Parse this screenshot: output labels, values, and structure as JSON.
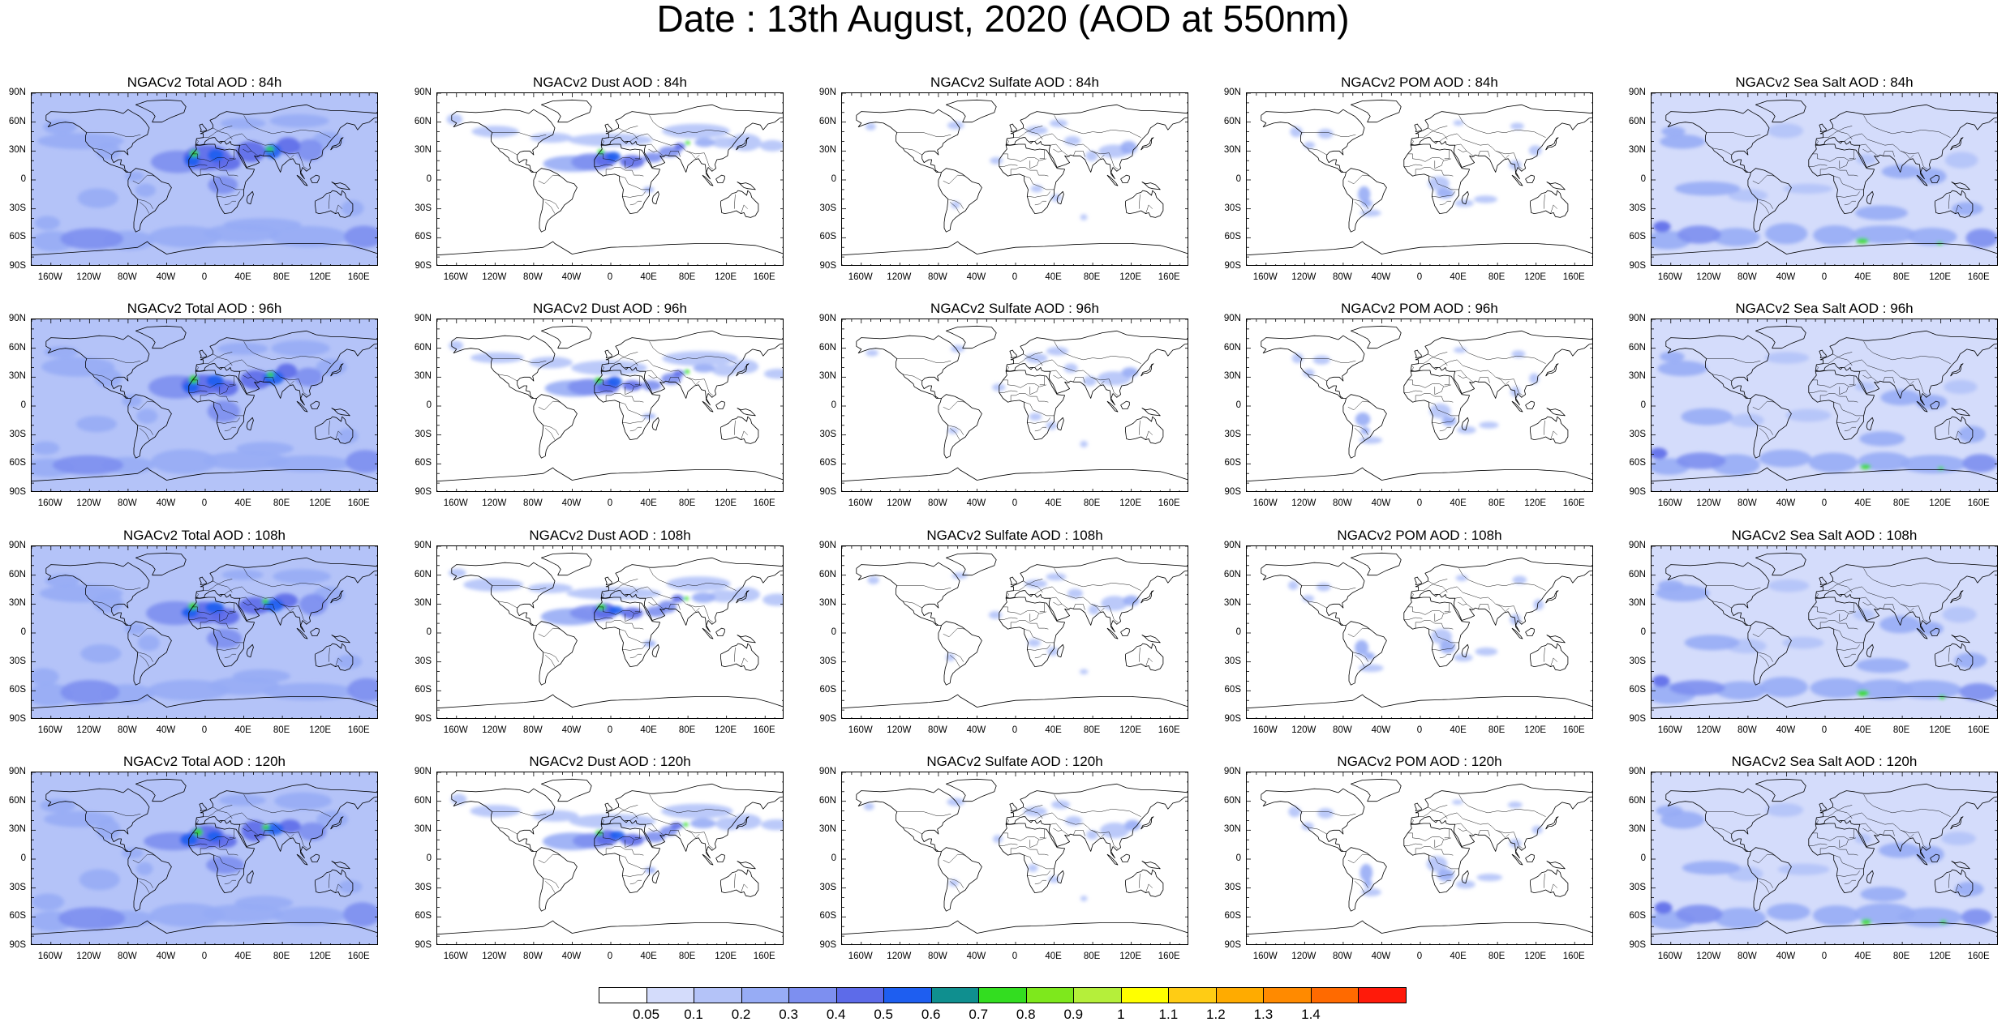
{
  "title": "Date : 13th August, 2020 (AOD at 550nm)",
  "panel_titles": [
    [
      "NGACv2 Total AOD : 84h",
      "NGACv2 Dust AOD : 84h",
      "NGACv2 Sulfate AOD : 84h",
      "NGACv2 POM AOD : 84h",
      "NGACv2 Sea Salt AOD : 84h"
    ],
    [
      "NGACv2 Total AOD : 96h",
      "NGACv2 Dust AOD : 96h",
      "NGACv2 Sulfate AOD : 96h",
      "NGACv2 POM AOD : 96h",
      "NGACv2 Sea Salt AOD : 96h"
    ],
    [
      "NGACv2 Total AOD : 108h",
      "NGACv2 Dust AOD : 108h",
      "NGACv2 Sulfate AOD : 108h",
      "NGACv2 POM AOD : 108h",
      "NGACv2 Sea Salt AOD : 108h"
    ],
    [
      "NGACv2 Total AOD : 120h",
      "NGACv2 Dust AOD : 120h",
      "NGACv2 Sulfate AOD : 120h",
      "NGACv2 POM AOD : 120h",
      "NGACv2 Sea Salt  AOD : 120h"
    ]
  ],
  "species": [
    "total",
    "dust",
    "sulfate",
    "pom",
    "seasalt"
  ],
  "lat_ticks": [
    "90N",
    "60N",
    "30N",
    "0",
    "30S",
    "60S",
    "90S"
  ],
  "lon_ticks": [
    "160W",
    "120W",
    "80W",
    "40W",
    "0",
    "40E",
    "80E",
    "120E",
    "160E"
  ],
  "colorbar": {
    "colors": [
      "#ffffff",
      "#d4dcfb",
      "#b4c3f8",
      "#97acf5",
      "#7d8ff0",
      "#5d6be9",
      "#1e5ef0",
      "#0f8f8f",
      "#33dd20",
      "#7ee81c",
      "#b5ef3a",
      "#ffff00",
      "#ffcc14",
      "#ffab00",
      "#ff8a00",
      "#ff6a00",
      "#ff1a0a"
    ],
    "labels": [
      "0.05",
      "0.1",
      "0.2",
      "0.3",
      "0.4",
      "0.5",
      "0.6",
      "0.7",
      "0.8",
      "0.9",
      "1",
      "1.1",
      "1.2",
      "1.3",
      "1.4"
    ]
  }
}
